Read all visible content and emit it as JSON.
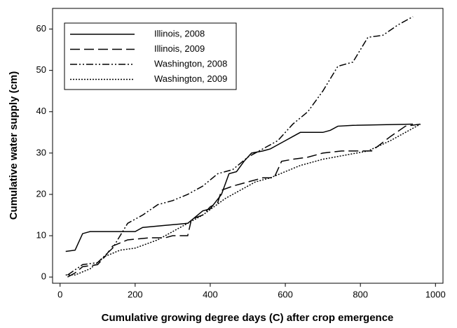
{
  "chart_data": {
    "type": "line",
    "xlabel": "Cumulative growing degree days (C) after crop emergence",
    "ylabel": "Cumulative water supply (cm)",
    "xlim": [
      -20,
      1020
    ],
    "ylim": [
      -1.5,
      65
    ],
    "xticks": [
      0,
      200,
      400,
      600,
      800,
      1000
    ],
    "yticks": [
      0,
      10,
      20,
      30,
      40,
      50,
      60
    ],
    "grid": false,
    "legend": "upper left",
    "series": [
      {
        "name": "Illinois, 2008",
        "color": "#000000",
        "dash": "solid",
        "x": [
          15,
          40,
          60,
          80,
          200,
          220,
          280,
          340,
          360,
          380,
          400,
          430,
          450,
          470,
          490,
          510,
          540,
          560,
          580,
          600,
          620,
          640,
          700,
          720,
          740,
          780,
          940
        ],
        "values": [
          6.2,
          6.5,
          10.5,
          11,
          11,
          12,
          12.5,
          13,
          14.5,
          16,
          16.5,
          20,
          25,
          25.5,
          28,
          30,
          30.5,
          31,
          32,
          33,
          34,
          35,
          35,
          35.5,
          36.5,
          36.7,
          37
        ]
      },
      {
        "name": "Illinois, 2009",
        "color": "#000000",
        "dash": "dashed",
        "x": [
          20,
          40,
          60,
          100,
          120,
          140,
          180,
          240,
          280,
          300,
          340,
          350,
          380,
          400,
          420,
          430,
          460,
          500,
          540,
          570,
          590,
          620,
          660,
          700,
          750,
          830,
          880,
          920,
          960
        ],
        "values": [
          0,
          1,
          2.5,
          3,
          5,
          7.5,
          9,
          9.5,
          9.5,
          10,
          10,
          14,
          15,
          17,
          18,
          21,
          22,
          23,
          24,
          24,
          28,
          28.5,
          29,
          30,
          30.5,
          30.5,
          34,
          36.5,
          37
        ]
      },
      {
        "name": "Washington, 2008",
        "color": "#000000",
        "dash": "dashdotdot",
        "x": [
          20,
          60,
          100,
          140,
          180,
          220,
          260,
          300,
          340,
          380,
          420,
          460,
          500,
          540,
          580,
          620,
          660,
          700,
          740,
          780,
          800,
          820,
          860,
          900,
          940
        ],
        "values": [
          0.5,
          3,
          3.5,
          7,
          13,
          15,
          17.5,
          18.5,
          20,
          22,
          25,
          26,
          29,
          31,
          33,
          37,
          40,
          45,
          51,
          52,
          55,
          58,
          58.5,
          61,
          63
        ]
      },
      {
        "name": "Washington, 2009",
        "color": "#000000",
        "dash": "dotted",
        "x": [
          15,
          40,
          80,
          120,
          160,
          200,
          260,
          300,
          340,
          380,
          410,
          440,
          480,
          520,
          560,
          600,
          640,
          700,
          760,
          820,
          880,
          920,
          960
        ],
        "values": [
          0.5,
          0.5,
          2,
          5,
          6.5,
          7,
          9,
          11,
          13,
          15,
          17,
          19,
          21,
          23,
          24,
          25.5,
          27,
          28.5,
          29.5,
          30.5,
          33,
          35,
          37
        ]
      }
    ]
  }
}
